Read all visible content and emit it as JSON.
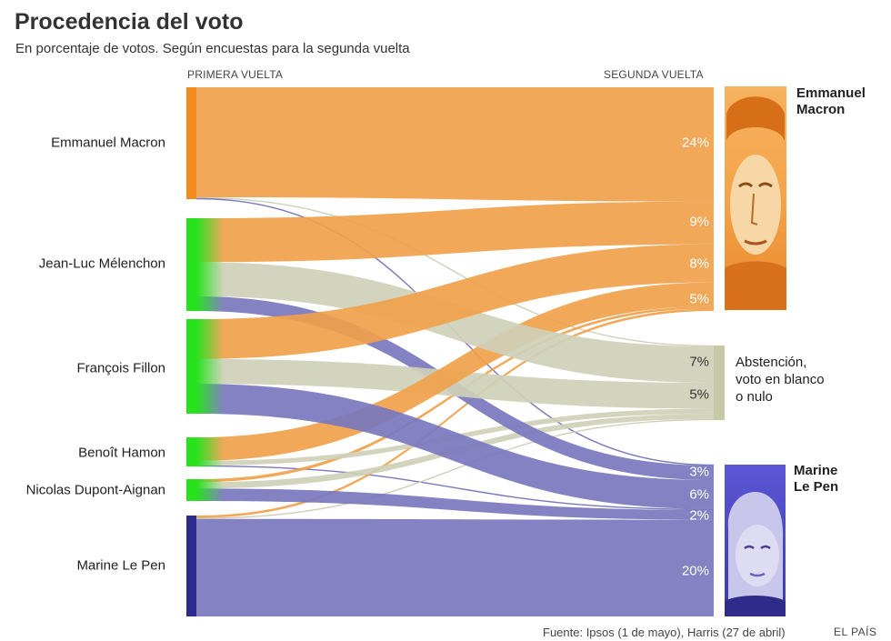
{
  "title": "Procedencia del voto",
  "subtitle": "En porcentaje de votos. Según encuestas para la segunda vuelta",
  "header_left": "PRIMERA VUELTA",
  "header_right": "SEGUNDA VUELTA",
  "source": "Fuente: Ipsos (1 de mayo), Harris (27 de abril)",
  "brand": "EL PAÍS",
  "targets": {
    "macron": "Emmanuel Macron",
    "abstencion": "Abstención, voto en blanco o nulo",
    "lepen": "Marine Le Pen"
  },
  "target_name_lines": {
    "macron": [
      "Emmanuel",
      "Macron"
    ],
    "abstencion": [
      "Abstención,",
      "voto en blanco",
      "o nulo"
    ],
    "lepen": [
      "Marine",
      "Le Pen"
    ]
  },
  "colors": {
    "macron": "#f0a14b",
    "abstencion": "#cfd0b8",
    "lepen": "#7a77bd",
    "macron_bar": "#f28a1e",
    "melenchon_bar": "#28e21e",
    "lepen_bar": "#2b2a8f"
  },
  "chart_data": {
    "type": "sankey",
    "title": "Procedencia del voto",
    "subtitle": "En porcentaje de votos. Según encuestas para la segunda vuelta",
    "sources": [
      "Emmanuel Macron",
      "Jean-Luc Mélenchon",
      "François Fillon",
      "Benoît Hamon",
      "Nicolas Dupont-Aignan",
      "Marine Le Pen"
    ],
    "targets": [
      "Emmanuel Macron",
      "Abstención, voto en blanco o nulo",
      "Marine Le Pen"
    ],
    "segment_labels": [
      {
        "target": "Emmanuel Macron",
        "source": "Emmanuel Macron",
        "label": "24%",
        "value": 24
      },
      {
        "target": "Emmanuel Macron",
        "source": "Jean-Luc Mélenchon",
        "label": "9%",
        "value": 9
      },
      {
        "target": "Emmanuel Macron",
        "source": "François Fillon",
        "label": "8%",
        "value": 8
      },
      {
        "target": "Emmanuel Macron",
        "source": "Benoît Hamon",
        "label": "5%",
        "value": 5
      },
      {
        "target": "Abstención, voto en blanco o nulo",
        "source": "Jean-Luc Mélenchon",
        "label": "7%",
        "value": 7
      },
      {
        "target": "Abstención, voto en blanco o nulo",
        "source": "François Fillon",
        "label": "5%",
        "value": 5
      },
      {
        "target": "Marine Le Pen",
        "source": "Jean-Luc Mélenchon",
        "label": "3%",
        "value": 3
      },
      {
        "target": "Marine Le Pen",
        "source": "François Fillon",
        "label": "6%",
        "value": 6
      },
      {
        "target": "Marine Le Pen",
        "source": "Nicolas Dupont-Aignan",
        "label": "2%",
        "value": 2
      },
      {
        "target": "Marine Le Pen",
        "source": "Marine Le Pen",
        "label": "20%",
        "value": 20
      }
    ],
    "links": [
      {
        "source": "Emmanuel Macron",
        "target": "Emmanuel Macron",
        "value": 24
      },
      {
        "source": "Emmanuel Macron",
        "target": "Abstención, voto en blanco o nulo",
        "value": 0.2
      },
      {
        "source": "Emmanuel Macron",
        "target": "Marine Le Pen",
        "value": 0.2
      },
      {
        "source": "Jean-Luc Mélenchon",
        "target": "Emmanuel Macron",
        "value": 9
      },
      {
        "source": "Jean-Luc Mélenchon",
        "target": "Abstención, voto en blanco o nulo",
        "value": 7
      },
      {
        "source": "Jean-Luc Mélenchon",
        "target": "Marine Le Pen",
        "value": 3
      },
      {
        "source": "François Fillon",
        "target": "Emmanuel Macron",
        "value": 8
      },
      {
        "source": "François Fillon",
        "target": "Abstención, voto en blanco o nulo",
        "value": 5
      },
      {
        "source": "François Fillon",
        "target": "Marine Le Pen",
        "value": 6
      },
      {
        "source": "Benoît Hamon",
        "target": "Emmanuel Macron",
        "value": 5
      },
      {
        "source": "Benoît Hamon",
        "target": "Abstención, voto en blanco o nulo",
        "value": 1
      },
      {
        "source": "Benoît Hamon",
        "target": "Marine Le Pen",
        "value": 0.2
      },
      {
        "source": "Nicolas Dupont-Aignan",
        "target": "Emmanuel Macron",
        "value": 0.5
      },
      {
        "source": "Nicolas Dupont-Aignan",
        "target": "Abstención, voto en blanco o nulo",
        "value": 1
      },
      {
        "source": "Nicolas Dupont-Aignan",
        "target": "Marine Le Pen",
        "value": 2
      },
      {
        "source": "Marine Le Pen",
        "target": "Emmanuel Macron",
        "value": 0.5
      },
      {
        "source": "Marine Le Pen",
        "target": "Abstención, voto en blanco o nulo",
        "value": 0.2
      },
      {
        "source": "Marine Le Pen",
        "target": "Marine Le Pen",
        "value": 20
      }
    ]
  }
}
